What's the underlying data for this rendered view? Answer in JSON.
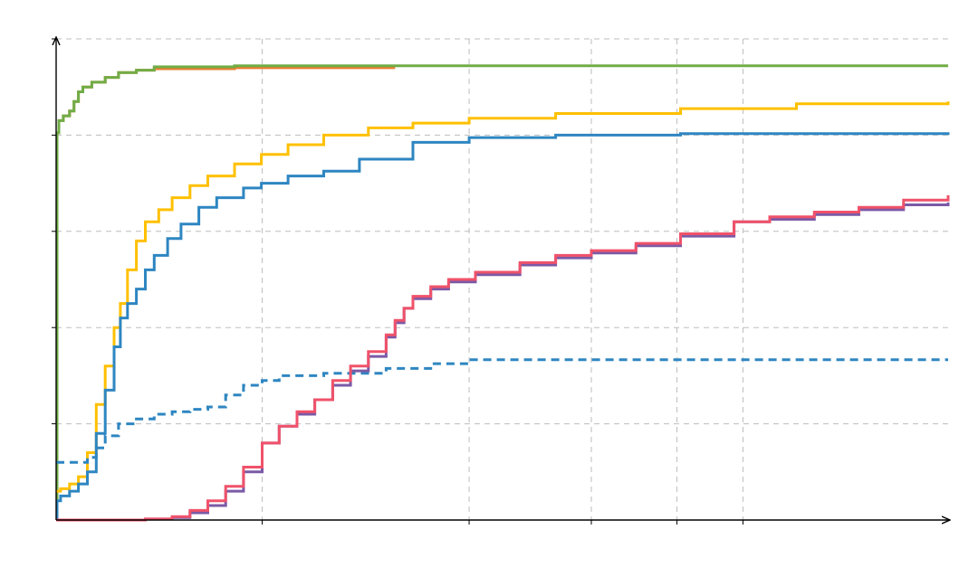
{
  "chart_data": {
    "type": "line",
    "title": "",
    "xlabel": "",
    "ylabel": "",
    "xlim": [
      0,
      1000
    ],
    "ylim": [
      0,
      100
    ],
    "grid": true,
    "legend": "none",
    "x_gridlines": [
      0,
      231,
      463,
      600,
      696,
      770
    ],
    "y_gridlines": [
      0,
      20,
      40,
      60,
      80,
      100
    ],
    "series": [
      {
        "style": "solid",
        "color": "#ed7d31",
        "points": [
          [
            0,
            80.5
          ],
          [
            3,
            83
          ],
          [
            8,
            84
          ],
          [
            15,
            85
          ],
          [
            20,
            87
          ],
          [
            25,
            89
          ],
          [
            30,
            90
          ],
          [
            40,
            91
          ],
          [
            55,
            92
          ],
          [
            70,
            93
          ],
          [
            90,
            93.5
          ],
          [
            110,
            93.8
          ],
          [
            200,
            94
          ],
          [
            380,
            94
          ]
        ]
      },
      {
        "style": "solid",
        "color": "#70ad47",
        "points": [
          [
            0,
            0
          ],
          [
            0.5,
            0
          ],
          [
            1,
            80.5
          ],
          [
            3,
            83
          ],
          [
            8,
            84
          ],
          [
            15,
            85
          ],
          [
            20,
            87
          ],
          [
            25,
            89
          ],
          [
            30,
            90
          ],
          [
            40,
            91
          ],
          [
            55,
            92
          ],
          [
            70,
            93
          ],
          [
            90,
            93.5
          ],
          [
            110,
            94.2
          ],
          [
            200,
            94.4
          ],
          [
            1000,
            94.4
          ]
        ]
      },
      {
        "style": "solid",
        "color": "#ffc000",
        "points": [
          [
            0,
            6
          ],
          [
            5,
            6.5
          ],
          [
            15,
            7.5
          ],
          [
            25,
            9
          ],
          [
            35,
            14
          ],
          [
            45,
            24
          ],
          [
            55,
            32
          ],
          [
            65,
            40
          ],
          [
            72,
            45
          ],
          [
            80,
            52
          ],
          [
            90,
            58
          ],
          [
            100,
            62
          ],
          [
            115,
            64.5
          ],
          [
            130,
            67
          ],
          [
            150,
            69.5
          ],
          [
            170,
            71.5
          ],
          [
            200,
            74
          ],
          [
            230,
            76
          ],
          [
            260,
            78
          ],
          [
            300,
            80
          ],
          [
            350,
            81.5
          ],
          [
            400,
            82.5
          ],
          [
            463,
            83.5
          ],
          [
            560,
            84.5
          ],
          [
            700,
            85.5
          ],
          [
            830,
            86.5
          ],
          [
            1000,
            87
          ]
        ]
      },
      {
        "style": "solid",
        "color": "#2e86c1",
        "points": [
          [
            0,
            0
          ],
          [
            1,
            4
          ],
          [
            5,
            5
          ],
          [
            15,
            6
          ],
          [
            25,
            7.5
          ],
          [
            35,
            10
          ],
          [
            45,
            18
          ],
          [
            55,
            27
          ],
          [
            65,
            36
          ],
          [
            72,
            42
          ],
          [
            80,
            45
          ],
          [
            90,
            48
          ],
          [
            100,
            52
          ],
          [
            110,
            55
          ],
          [
            125,
            58.5
          ],
          [
            140,
            61.5
          ],
          [
            160,
            65
          ],
          [
            180,
            67
          ],
          [
            210,
            69
          ],
          [
            230,
            70
          ],
          [
            260,
            71.5
          ],
          [
            300,
            72.5
          ],
          [
            340,
            75
          ],
          [
            400,
            78.5
          ],
          [
            463,
            79.5
          ],
          [
            560,
            80
          ],
          [
            700,
            80.3
          ],
          [
            1000,
            80.6
          ]
        ]
      },
      {
        "style": "dashed",
        "color": "#2e86c1",
        "points": [
          [
            0,
            12
          ],
          [
            20,
            12
          ],
          [
            35,
            13
          ],
          [
            45,
            15
          ],
          [
            55,
            17.5
          ],
          [
            70,
            20
          ],
          [
            90,
            21
          ],
          [
            110,
            22
          ],
          [
            130,
            22.5
          ],
          [
            150,
            23
          ],
          [
            170,
            23.5
          ],
          [
            190,
            26
          ],
          [
            210,
            28
          ],
          [
            231,
            29
          ],
          [
            250,
            30
          ],
          [
            300,
            30.5
          ],
          [
            370,
            31.5
          ],
          [
            420,
            32.5
          ],
          [
            463,
            33.3
          ],
          [
            1000,
            33.3
          ]
        ]
      },
      {
        "style": "solid",
        "color": "#7b5aa6",
        "points": [
          [
            0,
            0
          ],
          [
            50,
            0
          ],
          [
            100,
            0.2
          ],
          [
            130,
            0.5
          ],
          [
            150,
            1.5
          ],
          [
            170,
            3
          ],
          [
            190,
            6
          ],
          [
            210,
            10
          ],
          [
            231,
            16
          ],
          [
            250,
            19.5
          ],
          [
            270,
            22
          ],
          [
            290,
            25
          ],
          [
            310,
            28
          ],
          [
            330,
            31
          ],
          [
            350,
            34
          ],
          [
            370,
            38
          ],
          [
            380,
            41
          ],
          [
            390,
            44
          ],
          [
            400,
            46
          ],
          [
            420,
            48
          ],
          [
            440,
            49.5
          ],
          [
            470,
            51
          ],
          [
            520,
            53
          ],
          [
            560,
            54.5
          ],
          [
            600,
            55.5
          ],
          [
            650,
            57
          ],
          [
            700,
            59
          ],
          [
            760,
            62
          ],
          [
            800,
            62.5
          ],
          [
            850,
            63.5
          ],
          [
            900,
            64.5
          ],
          [
            950,
            65.5
          ],
          [
            1000,
            66
          ]
        ]
      },
      {
        "style": "solid",
        "color": "#f0526a",
        "points": [
          [
            0,
            0
          ],
          [
            50,
            0
          ],
          [
            100,
            0.2
          ],
          [
            130,
            0.7
          ],
          [
            150,
            2
          ],
          [
            170,
            4
          ],
          [
            190,
            7
          ],
          [
            210,
            11
          ],
          [
            231,
            16
          ],
          [
            250,
            19.5
          ],
          [
            270,
            22.5
          ],
          [
            290,
            25
          ],
          [
            310,
            29
          ],
          [
            330,
            32
          ],
          [
            350,
            35
          ],
          [
            370,
            38.5
          ],
          [
            380,
            41.5
          ],
          [
            390,
            44
          ],
          [
            400,
            46.5
          ],
          [
            420,
            48.5
          ],
          [
            440,
            50
          ],
          [
            470,
            51.5
          ],
          [
            520,
            53.5
          ],
          [
            560,
            55
          ],
          [
            600,
            56
          ],
          [
            650,
            57.5
          ],
          [
            700,
            59.5
          ],
          [
            760,
            62
          ],
          [
            800,
            63
          ],
          [
            850,
            64
          ],
          [
            900,
            65
          ],
          [
            950,
            66.5
          ],
          [
            1000,
            67.5
          ]
        ]
      }
    ]
  }
}
